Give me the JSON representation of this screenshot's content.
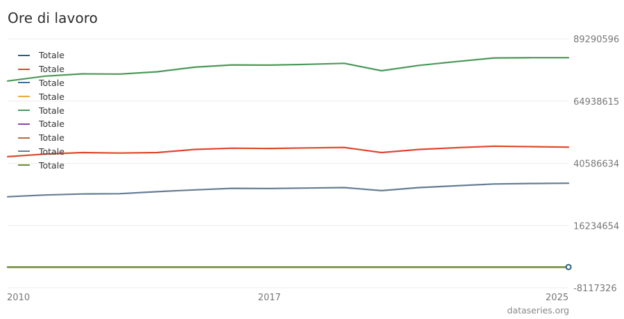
{
  "title": "Ore di lavoro",
  "watermark": "dataseries.org",
  "chart_data": {
    "type": "line",
    "title": "Ore di lavoro",
    "x": [
      2010,
      2011,
      2012,
      2013,
      2014,
      2015,
      2016,
      2017,
      2018,
      2019,
      2020,
      2021,
      2022,
      2023,
      2024,
      2025
    ],
    "x_ticks": [
      "2010",
      "2017",
      "2025"
    ],
    "y_ticks": [
      "89290596",
      "64938615",
      "40586634",
      "16234654",
      "-8117326"
    ],
    "ylim": [
      -8117326,
      89290596
    ],
    "y_axis_side": "right",
    "grid": true,
    "legend_position": "top-left",
    "series": [
      {
        "name": "Totale",
        "color": "#2e5f7a",
        "values": [
          0,
          0,
          0,
          0,
          0,
          0,
          0,
          0,
          0,
          0,
          0,
          0,
          0,
          0,
          0,
          0
        ]
      },
      {
        "name": "Totale",
        "color": "#e0452c",
        "values": [
          43200000,
          44200000,
          44800000,
          44600000,
          44800000,
          46000000,
          46500000,
          46400000,
          46600000,
          46800000,
          44800000,
          46000000,
          46700000,
          47300000,
          47100000,
          46900000
        ]
      },
      {
        "name": "Totale",
        "color": "#3a6f9a",
        "values": [
          0,
          0,
          0,
          0,
          0,
          0,
          0,
          0,
          0,
          0,
          0,
          0,
          0,
          0,
          0,
          0
        ]
      },
      {
        "name": "Totale",
        "color": "#e8a838",
        "values": [
          0,
          0,
          0,
          0,
          0,
          0,
          0,
          0,
          0,
          0,
          0,
          0,
          0,
          0,
          0,
          0
        ]
      },
      {
        "name": "Totale",
        "color": "#4a9858",
        "values": [
          72800000,
          74700000,
          75600000,
          75500000,
          76400000,
          78200000,
          79100000,
          79000000,
          79300000,
          79700000,
          76800000,
          78900000,
          80400000,
          81800000,
          81900000,
          81900000
        ]
      },
      {
        "name": "Totale",
        "color": "#8e44ad",
        "values": [
          0,
          0,
          0,
          0,
          0,
          0,
          0,
          0,
          0,
          0,
          0,
          0,
          0,
          0,
          0,
          0
        ]
      },
      {
        "name": "Totale",
        "color": "#b86a3a",
        "values": [
          0,
          0,
          0,
          0,
          0,
          0,
          0,
          0,
          0,
          0,
          0,
          0,
          0,
          0,
          0,
          0
        ]
      },
      {
        "name": "Totale",
        "color": "#647c94",
        "values": [
          27500000,
          28200000,
          28600000,
          28700000,
          29500000,
          30200000,
          30800000,
          30700000,
          30900000,
          31100000,
          29900000,
          31100000,
          31800000,
          32500000,
          32700000,
          32800000
        ]
      },
      {
        "name": "Totale",
        "color": "#6b8a2e",
        "values": [
          0,
          0,
          0,
          0,
          0,
          0,
          0,
          0,
          0,
          0,
          0,
          0,
          0,
          0,
          0,
          0
        ]
      }
    ]
  }
}
